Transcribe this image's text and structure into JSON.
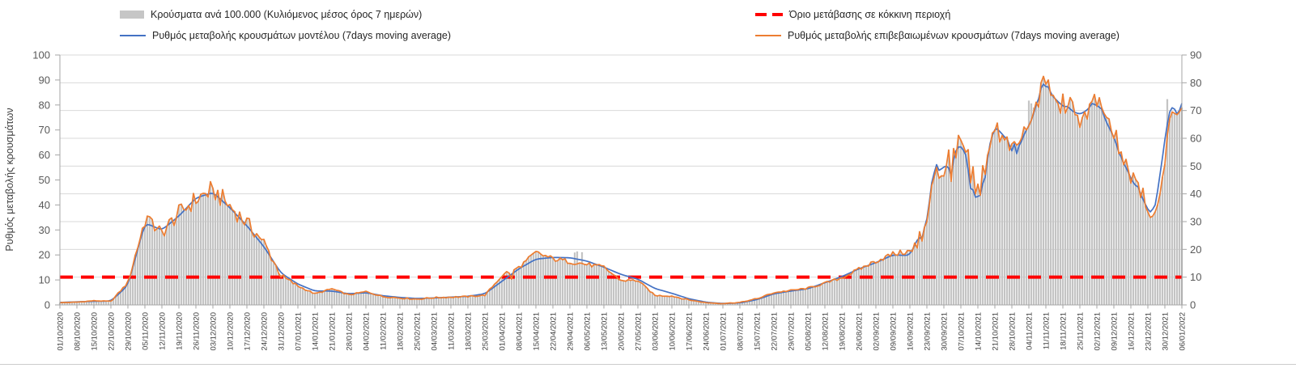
{
  "legend": {
    "items": [
      {
        "label": "Κρούσματα ανά 100.000 (Κυλιόμενος μέσος όρος 7 ημερών)",
        "type": "bar",
        "color": "#c6c6c6"
      },
      {
        "label": "Ρυθμός μεταβολής κρουσμάτων μοντέλου (7days moving average)",
        "type": "line",
        "color": "#4472c4"
      },
      {
        "label": "Όριο μετάβασης σε κόκκινη περιοχή",
        "type": "dashed-line",
        "color": "#ff0000"
      },
      {
        "label": "Ρυθμός μεταβολής επιβεβαιωμένων κρουσμάτων (7days moving average)",
        "type": "line",
        "color": "#ed7d31"
      }
    ]
  },
  "chart_data": {
    "type": "bar+line",
    "title": "",
    "ylabel_left": "Ρυθμός μεταβολής κρουσμάτων",
    "y_left": {
      "min": 0,
      "max": 100,
      "step": 10
    },
    "y_right": {
      "min": 0,
      "max": 90,
      "step": 10
    },
    "grid": "horizontal",
    "legend_position": "top",
    "threshold": {
      "label": "Όριο μετάβασης σε κόκκινη περιοχή",
      "value": 10,
      "color": "#ff0000"
    },
    "colors": {
      "bars": "#cdcdcd",
      "bar_edge": "#a8a8a8",
      "model": "#4472c4",
      "confirmed": "#ed7d31",
      "grid": "#d9d9d9",
      "axis": "#a6a6a6",
      "tick_text": "#595959",
      "date_text": "#404040"
    },
    "x_labels": [
      "01/10/2020",
      "08/10/2020",
      "15/10/2020",
      "22/10/2020",
      "29/10/2020",
      "05/11/2020",
      "12/11/2020",
      "19/11/2020",
      "26/11/2020",
      "03/12/2020",
      "10/12/2020",
      "17/12/2020",
      "24/12/2020",
      "31/12/2020",
      "07/01/2021",
      "14/01/2021",
      "21/01/2021",
      "28/01/2021",
      "04/02/2021",
      "11/02/2021",
      "18/02/2021",
      "25/02/2021",
      "04/03/2021",
      "11/03/2021",
      "18/03/2021",
      "25/03/2021",
      "01/04/2021",
      "08/04/2021",
      "15/04/2021",
      "22/04/2021",
      "29/04/2021",
      "06/05/2021",
      "13/05/2021",
      "20/05/2021",
      "27/05/2021",
      "03/06/2021",
      "10/06/2021",
      "17/06/2021",
      "24/06/2021",
      "01/07/2021",
      "08/07/2021",
      "15/07/2021",
      "22/07/2021",
      "29/07/2021",
      "05/08/2021",
      "12/08/2021",
      "19/08/2021",
      "26/08/2021",
      "02/09/2021",
      "09/09/2021",
      "16/09/2021",
      "23/09/2021",
      "30/09/2021",
      "07/10/2021",
      "14/10/2021",
      "21/10/2021",
      "28/10/2021",
      "04/11/2021",
      "11/11/2021",
      "18/11/2021",
      "25/11/2021",
      "02/12/2021",
      "09/12/2021",
      "16/12/2021",
      "23/12/2021",
      "30/12/2021",
      "06/01/2022"
    ],
    "series": [
      {
        "name": "Κρούσματα ανά 100.000 (Κυλιόμενος μέσος όρος 7 ημερών)",
        "type": "bar",
        "axis": "right",
        "weekly_values": [
          0.8,
          1.0,
          1.5,
          1.3,
          8.0,
          30.5,
          26.0,
          33.0,
          38.0,
          41.5,
          35.5,
          29.5,
          22.5,
          10.5,
          6.8,
          4.0,
          5.8,
          3.6,
          4.8,
          3.0,
          2.5,
          2.1,
          2.6,
          2.8,
          3.0,
          3.5,
          10.5,
          13.5,
          18.8,
          16.6,
          15.6,
          14.6,
          13.5,
          8.8,
          8.8,
          3.4,
          3.2,
          1.8,
          0.8,
          0.5,
          0.9,
          2.2,
          4.4,
          5.2,
          6.0,
          7.8,
          9.8,
          12.8,
          15.8,
          18.3,
          19.3,
          30.0,
          49.5,
          59.3,
          43.5,
          63.5,
          57.5,
          65.0,
          79.5,
          72.0,
          68.0,
          73.0,
          61.0,
          46.5,
          33.5,
          53.0,
          71.0
        ]
      },
      {
        "name": "Ρυθμός μεταβολής κρουσμάτων μοντέλου (7days moving average)",
        "type": "line",
        "axis": "right",
        "weekly_values": [
          0.9,
          1.1,
          1.3,
          1.4,
          7.0,
          29.5,
          27.0,
          32.0,
          38.5,
          40.5,
          35.0,
          28.5,
          21.0,
          11.5,
          7.5,
          5.0,
          5.0,
          4.0,
          4.4,
          3.3,
          2.7,
          2.3,
          2.5,
          2.8,
          3.1,
          4.0,
          8.5,
          13.0,
          16.5,
          17.1,
          17.0,
          15.8,
          13.6,
          11.0,
          9.3,
          5.9,
          4.2,
          2.2,
          1.0,
          0.5,
          0.7,
          1.9,
          4.0,
          5.0,
          5.8,
          8.0,
          10.2,
          13.0,
          15.2,
          18.0,
          17.8,
          31.0,
          50.0,
          58.3,
          38.8,
          65.0,
          55.5,
          64.5,
          77.5,
          71.5,
          68.5,
          72.5,
          60.5,
          45.5,
          34.5,
          59.5,
          72.6
        ]
      },
      {
        "name": "Ρυθμός μεταβολής επιβεβαιωμένων κρουσμάτων (7days moving average)",
        "type": "line",
        "axis": "right",
        "weekly_values": [
          0.8,
          1.0,
          1.5,
          1.3,
          8.0,
          30.5,
          26.0,
          33.0,
          38.0,
          41.5,
          35.5,
          29.5,
          22.5,
          10.5,
          6.8,
          4.0,
          5.8,
          3.6,
          4.8,
          3.0,
          2.5,
          2.1,
          2.6,
          2.8,
          3.0,
          3.5,
          10.5,
          13.5,
          18.8,
          16.6,
          15.6,
          14.6,
          13.5,
          8.8,
          8.8,
          3.4,
          3.2,
          1.8,
          0.8,
          0.5,
          0.9,
          2.2,
          4.4,
          5.2,
          6.0,
          7.8,
          9.8,
          12.8,
          15.8,
          18.3,
          19.3,
          30.0,
          49.5,
          59.3,
          43.5,
          63.5,
          57.5,
          65.0,
          79.5,
          72.0,
          68.0,
          73.0,
          61.0,
          46.5,
          33.5,
          53.0,
          71.0
        ]
      }
    ],
    "daily_overrides": {
      "confirmed": {
        "36": 32,
        "38": 30.8,
        "40": 27.5,
        "63": 42,
        "82": 24.5,
        "83": 23.5,
        "184": 12,
        "186": 9.3,
        "351": 19.3,
        "353": 20.5,
        "355": 23,
        "357": 30,
        "358": 36,
        "359": 43,
        "360": 46,
        "361": 49.5,
        "363": 46.5,
        "365": 50,
        "367": 44.5,
        "369": 53,
        "371": 59.3,
        "373": 55,
        "375": 44,
        "377": 40,
        "378": 43.5,
        "379": 39.5,
        "381": 47,
        "383": 57,
        "388": 61,
        "390": 60.5,
        "392": 58,
        "394": 57.5,
        "396": 60,
        "398": 63,
        "400": 66.5,
        "401": 69.5,
        "402": 73,
        "404": 80,
        "405": 82.3,
        "406": 79.5,
        "407": 81,
        "409": 75.5,
        "411": 72.5,
        "415": 71.2,
        "418": 68.5,
        "422": 69.5,
        "425": 73.3,
        "429": 71,
        "431": 67.5,
        "436": 54.5,
        "438": 50.5,
        "442": 47.5,
        "444": 44,
        "446": 42,
        "448": 33.5,
        "449": 31.5,
        "450": 32,
        "451": 33.5,
        "452": 36,
        "453": 40,
        "454": 46,
        "456": 61,
        "457": 67,
        "458": 69.5,
        "459": 69,
        "460": 68.5,
        "461": 69.5,
        "462": 71
      },
      "model": {
        "355": 24,
        "357": 31,
        "358": 37,
        "359": 44,
        "360": 47.5,
        "361": 50.5,
        "363": 49,
        "365": 50,
        "367": 46.5,
        "373": 54,
        "375": 42,
        "377": 38.8,
        "379": 39.5,
        "381": 46,
        "383": 58,
        "388": 61.5,
        "390": 60,
        "392": 55.5,
        "393": 58,
        "394": 54.5,
        "396": 59,
        "398": 63,
        "402": 72,
        "404": 78,
        "405": 79.5,
        "407": 78.5,
        "409": 75,
        "415": 71.5,
        "425": 72.5,
        "429": 70.5,
        "436": 55,
        "438": 51,
        "444": 42.5,
        "446": 38,
        "448": 34.5,
        "449": 33.5,
        "450": 34.5,
        "451": 36,
        "452": 41,
        "453": 47,
        "454": 53,
        "455": 59.5,
        "456": 65,
        "457": 69.5,
        "458": 71,
        "459": 70.5,
        "460": 68.8,
        "461": 70,
        "462": 72.6
      },
      "bars": {
        "212": 18.8,
        "213": 19.2,
        "215": 18.9,
        "399": 73.5,
        "400": 72.5,
        "401": 71,
        "456": 74
      }
    }
  }
}
